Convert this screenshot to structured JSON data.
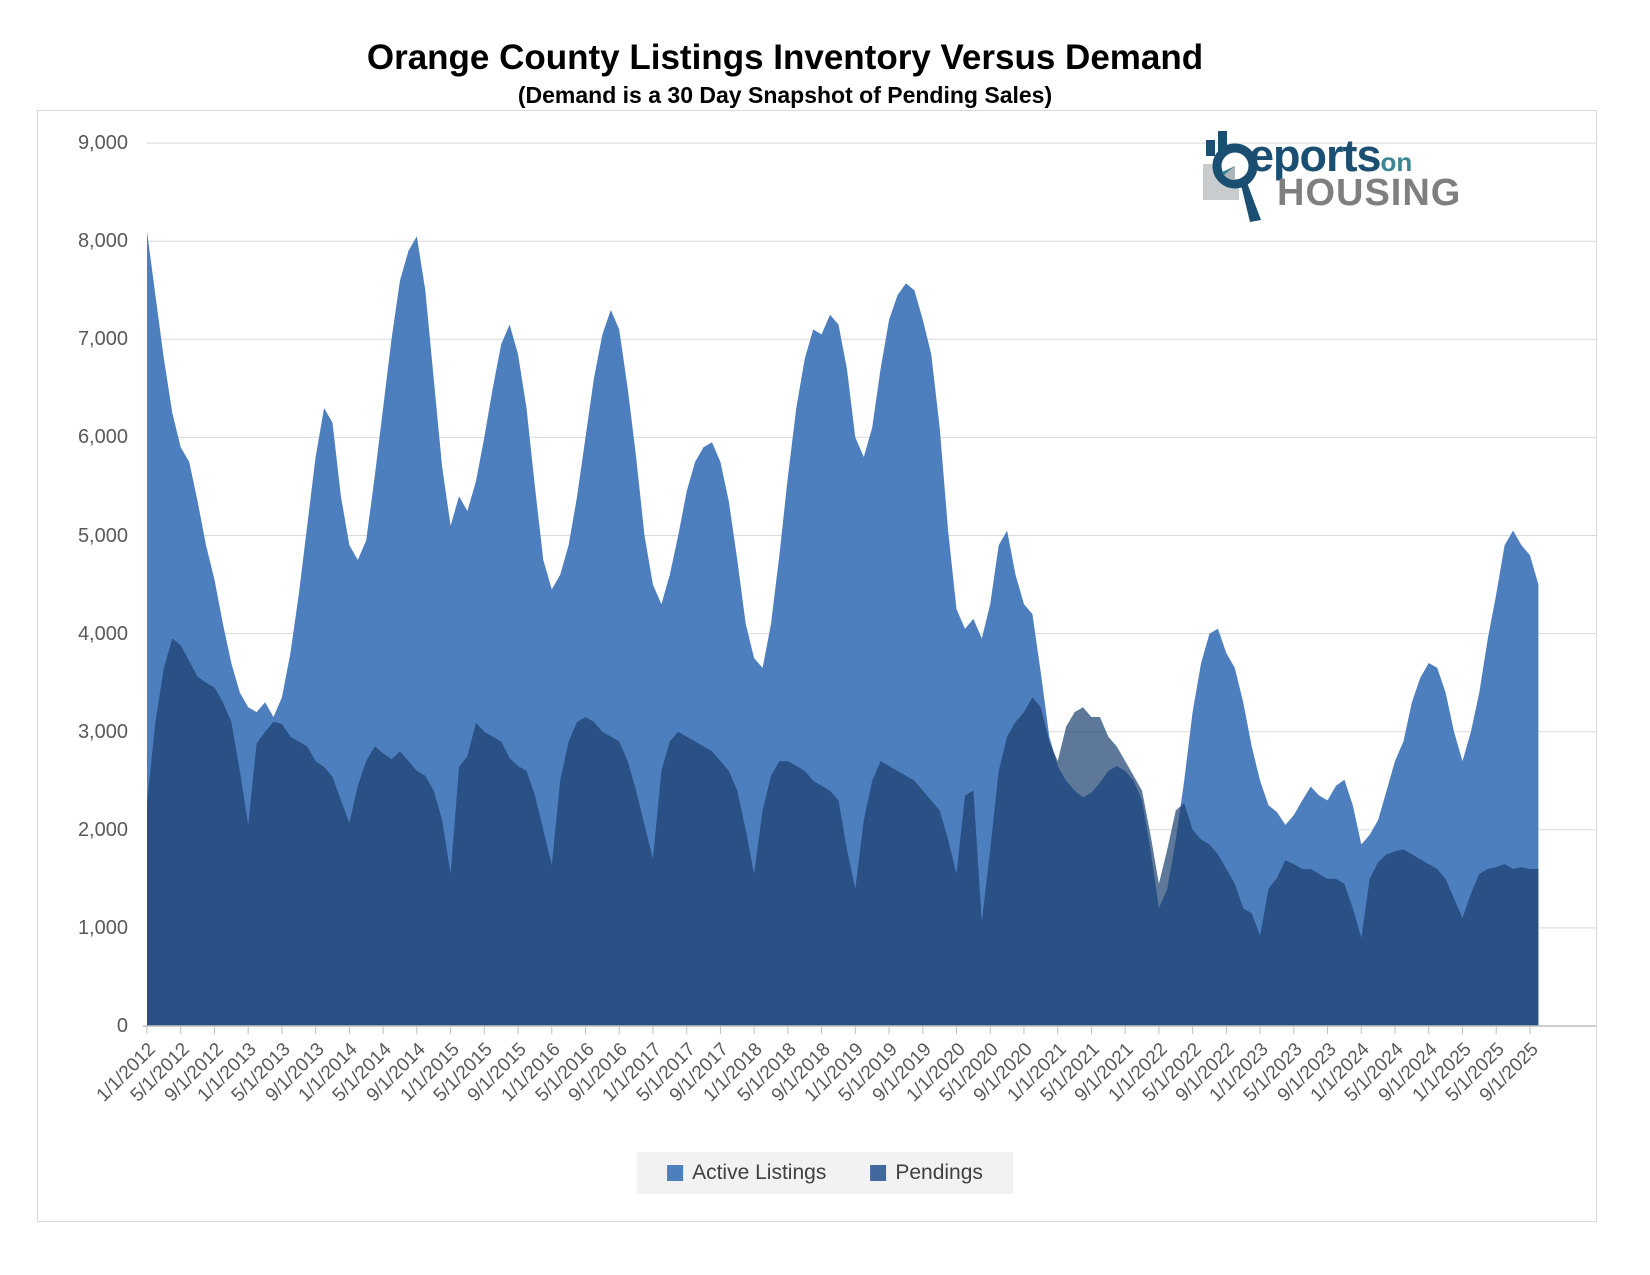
{
  "title": "Orange County Listings Inventory Versus Demand",
  "subtitle": "(Demand is a 30 Day Snapshot of Pending Sales)",
  "logo": {
    "part1": "eports",
    "part2": "on",
    "part3": "HOUSING"
  },
  "colors": {
    "active": "#4D7EBE",
    "pendings_area": "rgba(26,62,109,0.70)",
    "pendings_swatch": "#41699F",
    "grid": "#D9D9D9",
    "axis": "#BFBFBF",
    "tick_text": "#595959",
    "legend_bg": "#F2F2F2",
    "legend_text": "#404040",
    "logo_navy": "#1B4F72",
    "logo_teal": "#3B8593",
    "logo_gray": "#7F7F7F"
  },
  "chart_data": {
    "type": "area",
    "title": "Orange County Listings Inventory Versus Demand",
    "subtitle": "(Demand is a 30 Day Snapshot of Pending Sales)",
    "x_start": "1/1/2012",
    "x_end_data": "10/2025",
    "x_interval": "monthly",
    "ylim": [
      0,
      9000
    ],
    "grid": true,
    "legend_position": "bottom",
    "y_tick_labels": [
      "0",
      "1,000",
      "2,000",
      "3,000",
      "4,000",
      "5,000",
      "6,000",
      "7,000",
      "8,000",
      "9,000"
    ],
    "x_tick_labels": [
      "1/1/2012",
      "5/1/2012",
      "9/1/2012",
      "1/1/2013",
      "5/1/2013",
      "9/1/2013",
      "1/1/2014",
      "5/1/2014",
      "9/1/2014",
      "1/1/2015",
      "5/1/2015",
      "9/1/2015",
      "1/1/2016",
      "5/1/2016",
      "9/1/2016",
      "1/1/2017",
      "5/1/2017",
      "9/1/2017",
      "1/1/2018",
      "5/1/2018",
      "9/1/2018",
      "1/1/2019",
      "5/1/2019",
      "9/1/2019",
      "1/1/2020",
      "5/1/2020",
      "9/1/2020",
      "1/1/2021",
      "5/1/2021",
      "9/1/2021",
      "1/1/2022",
      "5/1/2022",
      "9/1/2022",
      "1/1/2023",
      "5/1/2023",
      "9/1/2023",
      "1/1/2024",
      "5/1/2024",
      "9/1/2024",
      "1/1/2025",
      "5/1/2025",
      "9/1/2025"
    ],
    "series": [
      {
        "name": "Active Listings",
        "values": [
          8100,
          7450,
          6800,
          6250,
          5900,
          5750,
          5350,
          4900,
          4550,
          4100,
          3700,
          3400,
          3250,
          3200,
          3300,
          3150,
          3350,
          3800,
          4400,
          5100,
          5800,
          6300,
          6150,
          5400,
          4900,
          4750,
          4950,
          5600,
          6300,
          7000,
          7600,
          7900,
          8050,
          7500,
          6600,
          5700,
          5100,
          5400,
          5250,
          5550,
          6000,
          6500,
          6950,
          7150,
          6850,
          6300,
          5500,
          4750,
          4450,
          4600,
          4900,
          5400,
          6000,
          6600,
          7050,
          7300,
          7100,
          6500,
          5800,
          5000,
          4500,
          4300,
          4600,
          5000,
          5450,
          5750,
          5900,
          5950,
          5750,
          5350,
          4750,
          4100,
          3750,
          3650,
          4100,
          4800,
          5600,
          6300,
          6800,
          7100,
          7050,
          7250,
          7150,
          6700,
          6000,
          5800,
          6100,
          6700,
          7200,
          7450,
          7570,
          7500,
          7200,
          6850,
          6100,
          5050,
          4250,
          4050,
          4150,
          3950,
          4300,
          4900,
          5050,
          4600,
          4300,
          4200,
          3600,
          2950,
          2650,
          2500,
          2400,
          2330,
          2380,
          2480,
          2600,
          2650,
          2600,
          2500,
          2300,
          1800,
          1200,
          1400,
          1900,
          2500,
          3200,
          3700,
          4000,
          4050,
          3800,
          3650,
          3300,
          2850,
          2500,
          2250,
          2180,
          2050,
          2150,
          2300,
          2440,
          2350,
          2300,
          2450,
          2510,
          2250,
          1850,
          1950,
          2100,
          2400,
          2700,
          2900,
          3300,
          3550,
          3700,
          3650,
          3400,
          3000,
          2700,
          3000,
          3400,
          3950,
          4400,
          4900,
          5050,
          4900,
          4800,
          4500
        ]
      },
      {
        "name": "Pendings",
        "values": [
          2270,
          3100,
          3650,
          3950,
          3880,
          3720,
          3560,
          3500,
          3450,
          3300,
          3100,
          2600,
          2050,
          2880,
          3000,
          3100,
          3080,
          2950,
          2900,
          2850,
          2700,
          2640,
          2540,
          2300,
          2070,
          2450,
          2700,
          2850,
          2780,
          2720,
          2800,
          2700,
          2600,
          2550,
          2400,
          2100,
          1550,
          2640,
          2750,
          3090,
          3000,
          2950,
          2900,
          2730,
          2650,
          2600,
          2350,
          2000,
          1640,
          2500,
          2900,
          3100,
          3150,
          3100,
          3000,
          2950,
          2900,
          2700,
          2400,
          2050,
          1700,
          2600,
          2900,
          3000,
          2950,
          2900,
          2850,
          2800,
          2700,
          2600,
          2400,
          2000,
          1550,
          2200,
          2550,
          2700,
          2700,
          2650,
          2600,
          2500,
          2450,
          2400,
          2300,
          1800,
          1400,
          2100,
          2500,
          2700,
          2650,
          2600,
          2550,
          2500,
          2400,
          2300,
          2200,
          1900,
          1550,
          2350,
          2400,
          1060,
          1800,
          2600,
          2950,
          3100,
          3200,
          3350,
          3250,
          2900,
          2700,
          3050,
          3200,
          3250,
          3150,
          3150,
          2950,
          2850,
          2700,
          2550,
          2400,
          1950,
          1450,
          1800,
          2200,
          2270,
          2000,
          1900,
          1850,
          1750,
          1600,
          1450,
          1200,
          1150,
          920,
          1400,
          1510,
          1690,
          1650,
          1600,
          1600,
          1550,
          1500,
          1500,
          1450,
          1200,
          900,
          1500,
          1670,
          1750,
          1780,
          1800,
          1750,
          1700,
          1650,
          1600,
          1500,
          1300,
          1100,
          1350,
          1550,
          1600,
          1620,
          1650,
          1600,
          1620,
          1600,
          1600
        ]
      }
    ]
  }
}
